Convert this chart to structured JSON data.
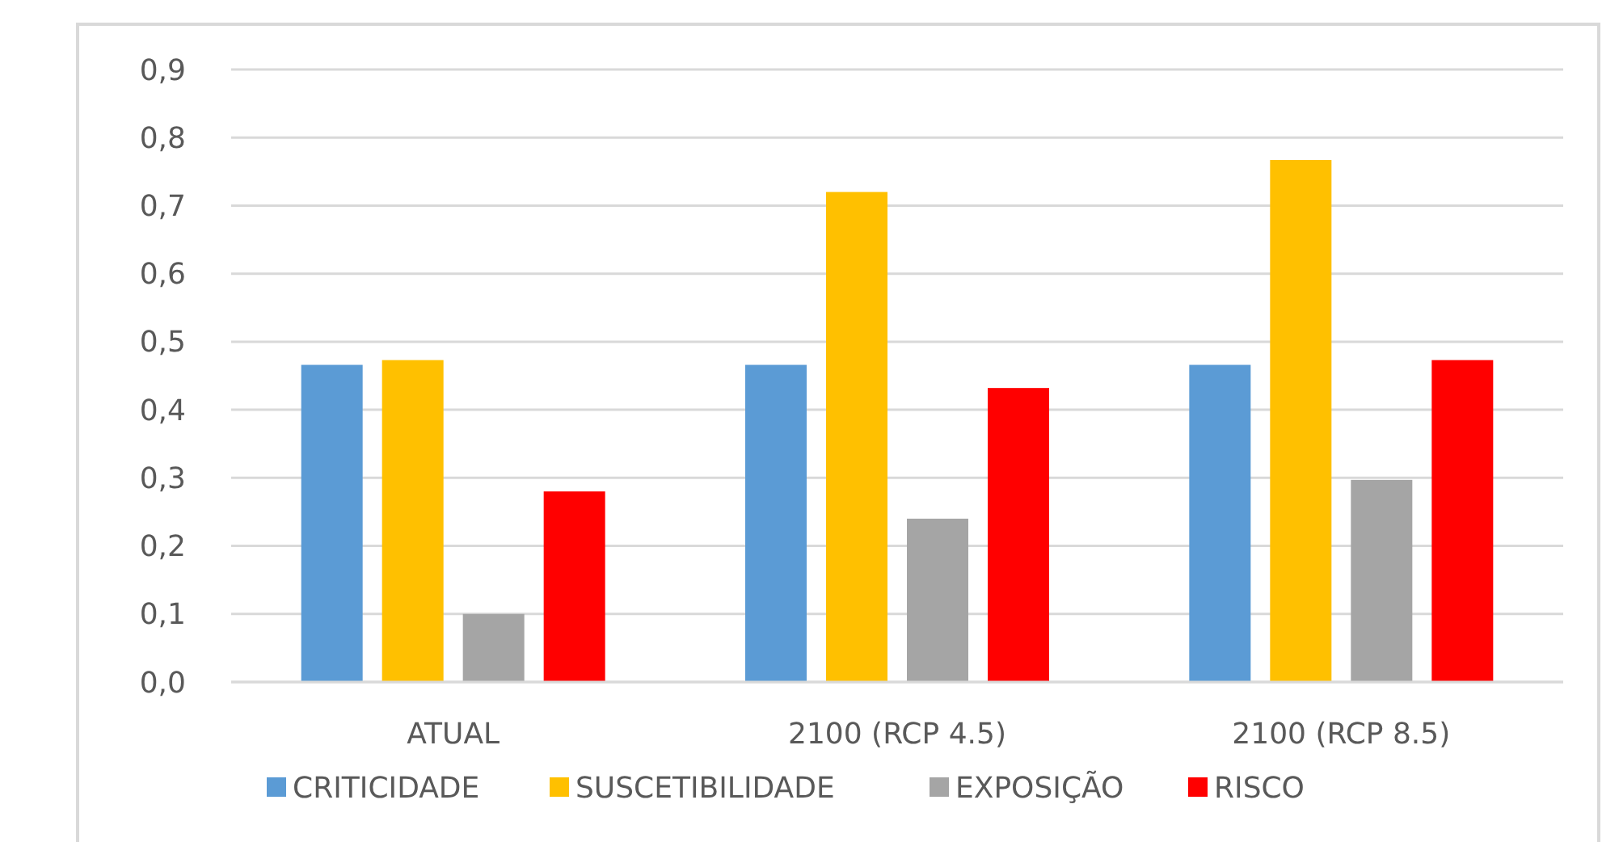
{
  "chart_data": {
    "type": "bar",
    "categories": [
      "ATUAL",
      "2100 (RCP 4.5)",
      "2100 (RCP 8.5)"
    ],
    "series": [
      {
        "name": "CRITICIDADE",
        "color": "#5b9bd5",
        "values": [
          0.466,
          0.466,
          0.466
        ]
      },
      {
        "name": "SUSCETIBILIDADE",
        "color": "#ffc000",
        "values": [
          0.473,
          0.72,
          0.767
        ]
      },
      {
        "name": "EXPOSIÇÃO",
        "color": "#a5a5a5",
        "values": [
          0.1,
          0.24,
          0.297
        ]
      },
      {
        "name": "RISCO",
        "color": "#ff0000",
        "values": [
          0.28,
          0.432,
          0.473
        ]
      }
    ],
    "ylim": [
      0,
      0.9
    ],
    "yticks": [
      {
        "value": 0,
        "label": "0,0"
      },
      {
        "value": 0.1,
        "label": "0,1"
      },
      {
        "value": 0.2,
        "label": "0,2"
      },
      {
        "value": 0.3,
        "label": "0,3"
      },
      {
        "value": 0.4,
        "label": "0,4"
      },
      {
        "value": 0.5,
        "label": "0,5"
      },
      {
        "value": 0.6,
        "label": "0,6"
      },
      {
        "value": 0.7,
        "label": "0,7"
      },
      {
        "value": 0.8,
        "label": "0,8"
      },
      {
        "value": 0.9,
        "label": "0,9"
      }
    ],
    "grid": "y",
    "legend": "bottom"
  }
}
